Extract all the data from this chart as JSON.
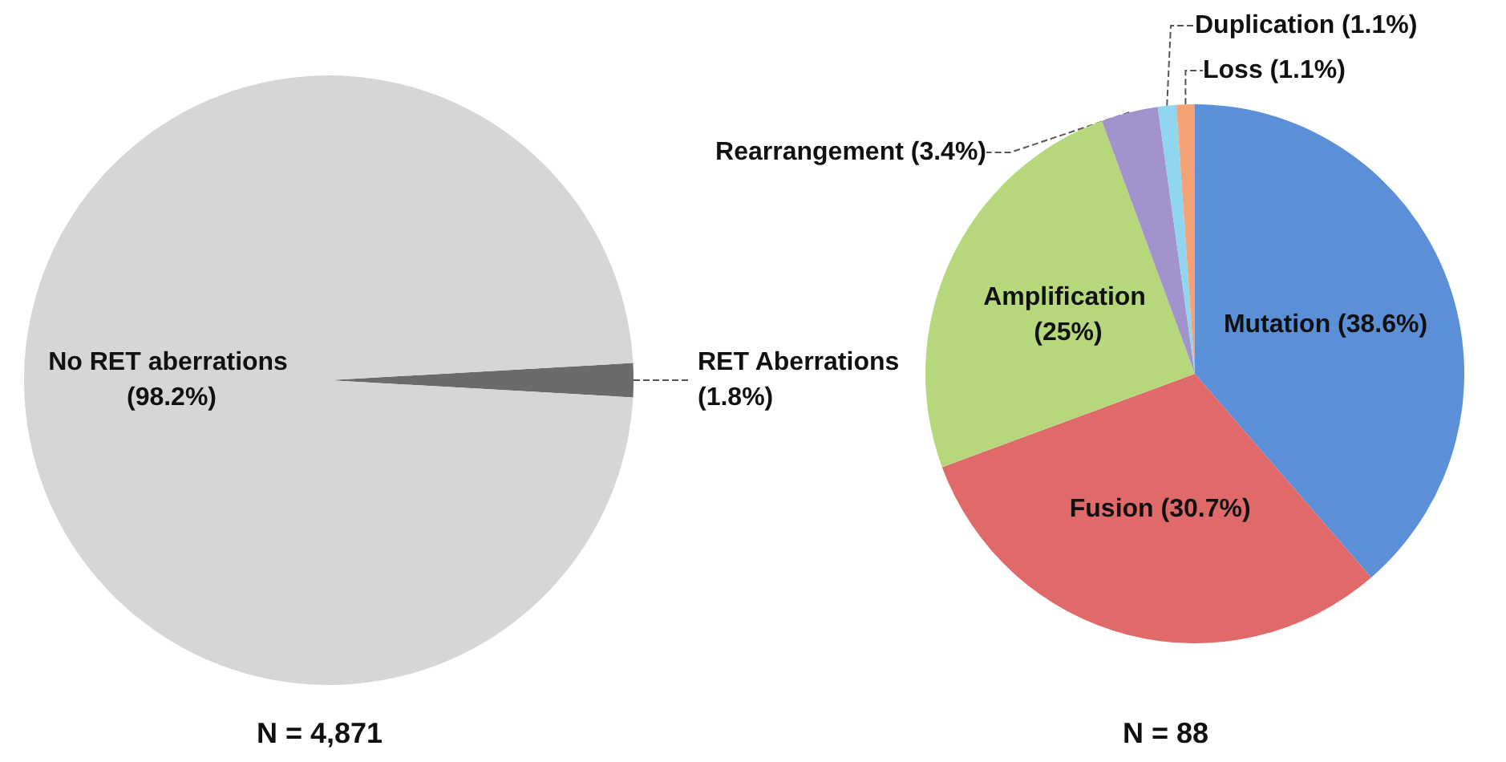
{
  "chart_data": [
    {
      "type": "pie",
      "categories": [
        "RET Aberrations",
        "No RET aberrations"
      ],
      "values": [
        1.8,
        98.2
      ],
      "value_labels": [
        "(1.8%)",
        "(98.2%)"
      ],
      "colors": [
        "#6b6b6b",
        "#d6d6d6"
      ],
      "annotations": [
        "N = 4,871"
      ]
    },
    {
      "type": "pie",
      "categories": [
        "Mutation",
        "Fusion",
        "Amplification",
        "Rearrangement",
        "Duplication",
        "Loss"
      ],
      "values": [
        38.6,
        30.7,
        25,
        3.4,
        1.1,
        1.1
      ],
      "value_labels": [
        "(38.6%)",
        "(30.7%)",
        "(25%)",
        "(3.4%)",
        "(1.1%)",
        "(1.1%)"
      ],
      "colors": [
        "#5b8fd8",
        "#e06a6a",
        "#b7d77c",
        "#a393cc",
        "#8fd6ee",
        "#f2a274"
      ],
      "annotations": [
        "N = 88"
      ]
    }
  ]
}
